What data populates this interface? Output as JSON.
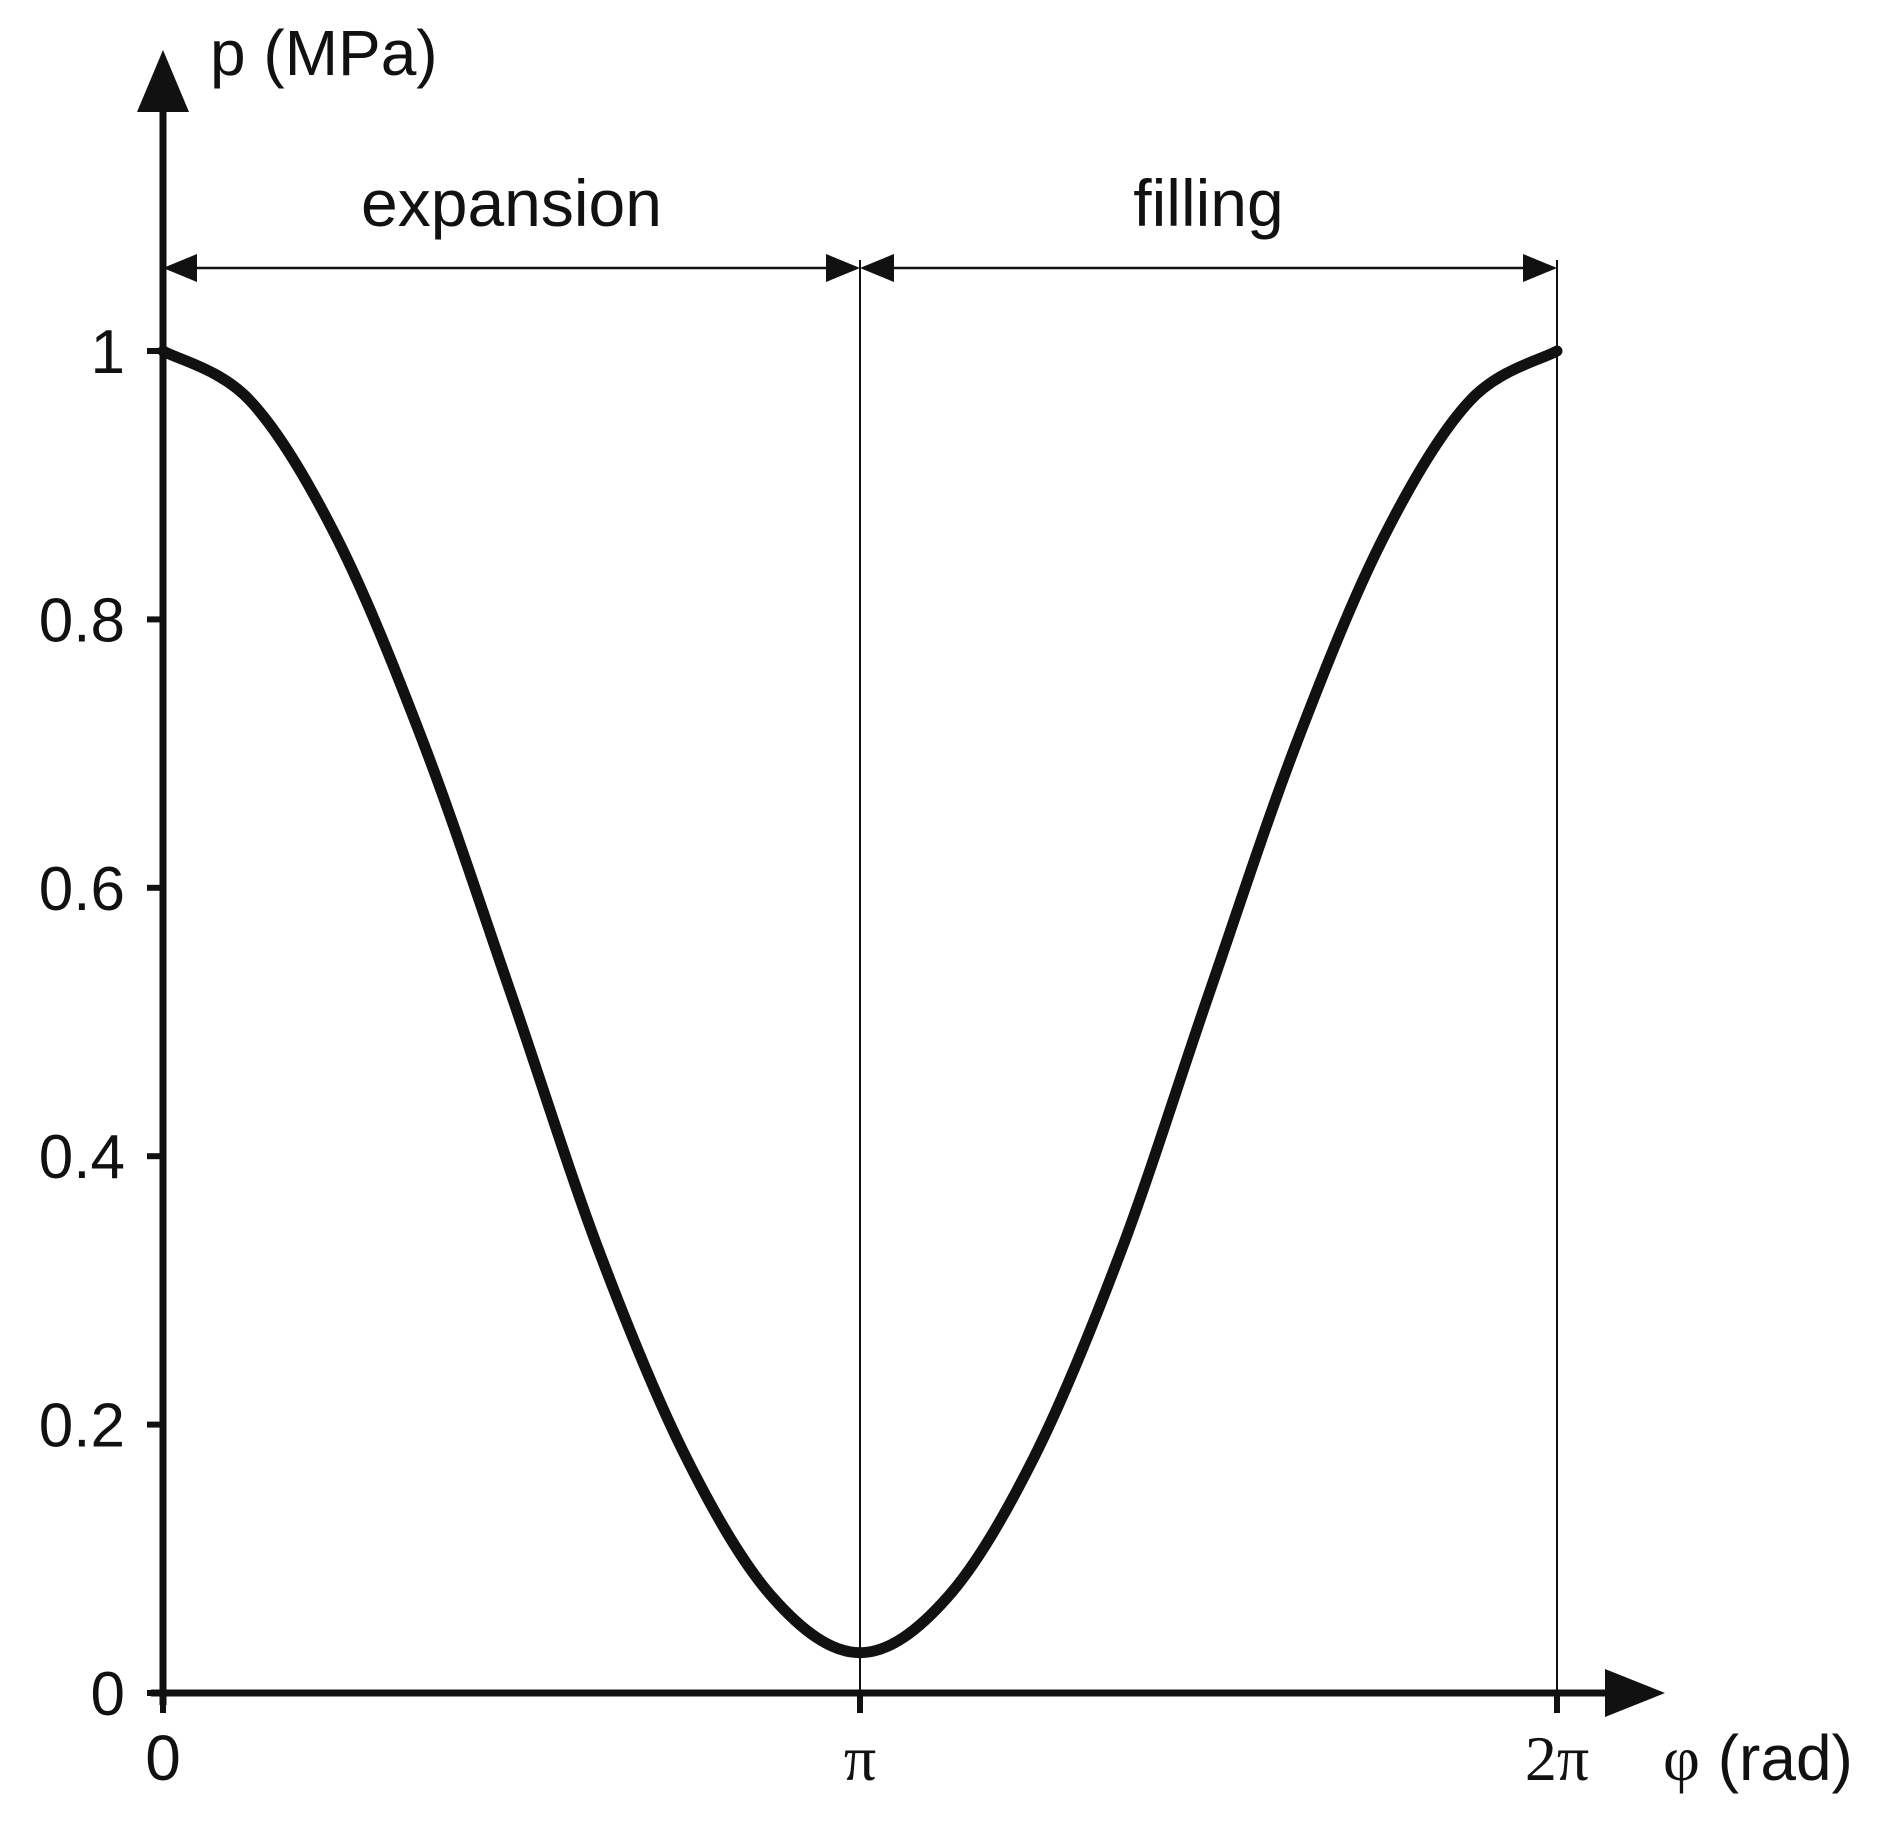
{
  "chart_data": {
    "type": "line",
    "title": "",
    "ylabel": "p (MPa)",
    "xlabel": "φ (rad)",
    "x_ticks": [
      {
        "value": 0,
        "label": "0"
      },
      {
        "value": 3.14159265,
        "label": "π"
      },
      {
        "value": 6.28318531,
        "label": "2π"
      }
    ],
    "y_ticks": [
      {
        "value": 0,
        "label": "0"
      },
      {
        "value": 0.2,
        "label": "0.2"
      },
      {
        "value": 0.4,
        "label": "0.4"
      },
      {
        "value": 0.6,
        "label": "0.6"
      },
      {
        "value": 0.8,
        "label": "0.8"
      },
      {
        "value": 1,
        "label": "1"
      }
    ],
    "xlim": [
      0,
      6.28318531
    ],
    "ylim": [
      0,
      1
    ],
    "grid": false,
    "series": [
      {
        "x": [
          0,
          0.3927,
          0.7854,
          1.1781,
          1.5708,
          1.9635,
          2.3562,
          2.7489,
          3.1416,
          3.5343,
          3.927,
          4.3197,
          4.7124,
          5.1051,
          5.4978,
          5.8905,
          6.2832
        ],
        "values": [
          1.0,
          0.963,
          0.86,
          0.706,
          0.52,
          0.33,
          0.176,
          0.071,
          0.03,
          0.071,
          0.176,
          0.33,
          0.52,
          0.706,
          0.86,
          0.963,
          1.0
        ]
      }
    ],
    "annotations": [
      {
        "text": "expansion",
        "x_from": 0,
        "x_to": 3.14159265
      },
      {
        "text": "filling",
        "x_from": 3.14159265,
        "x_to": 6.28318531
      }
    ],
    "colors": {
      "line": "#111111",
      "axes": "#111111",
      "background": "#ffffff"
    }
  }
}
